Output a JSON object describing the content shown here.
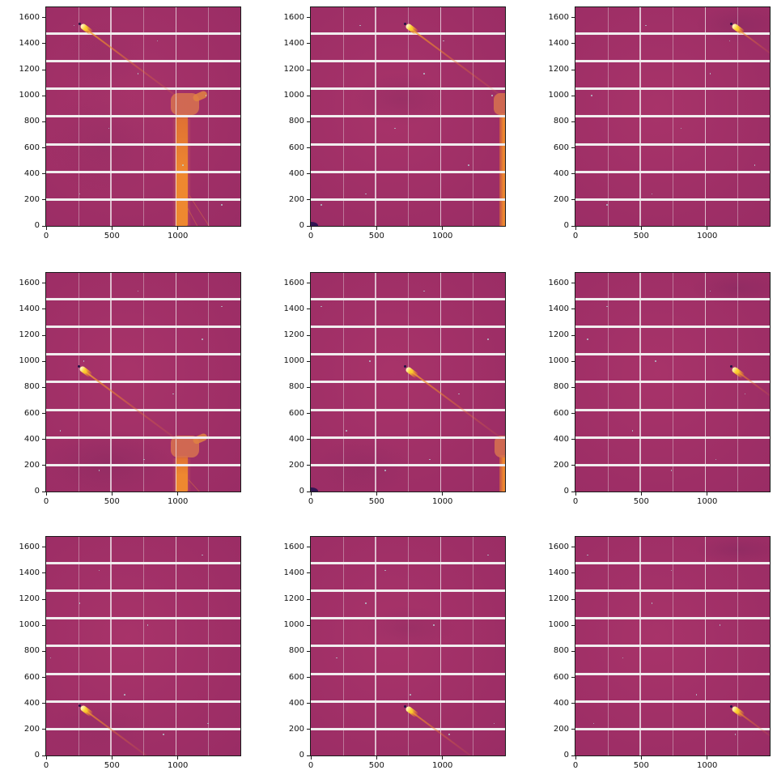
{
  "figure": {
    "background": "#ffffff",
    "description": "3x3 grid of detector diffraction images"
  },
  "chart_data": {
    "type": "heatmap",
    "layout": {
      "rows": 3,
      "cols": 3,
      "grid": false,
      "legend": "none"
    },
    "title": "",
    "xlabel": "",
    "ylabel": "",
    "xlim": [
      0,
      1475
    ],
    "ylim": [
      0,
      1679
    ],
    "xticks": [
      0,
      500,
      1000
    ],
    "yticks": [
      0,
      200,
      400,
      600,
      800,
      1000,
      1200,
      1400,
      1600
    ],
    "module_gap_rows_y": [
      204,
      416,
      628,
      840,
      1052,
      1264,
      1476
    ],
    "module_gap_cols_strong_x": [
      492,
      984
    ],
    "module_gap_cols_faint_x": [
      246,
      738,
      1230
    ],
    "colors": {
      "background": "#a4306a",
      "background_dark": "#6e235a",
      "gap_stripe": "#f1edee",
      "vline": "#f3eef0",
      "spot_core": "#fff6c4",
      "spot_bright": "#fdd02c",
      "streak_tail": "#ee7d2d",
      "shadow_core_orange": "#ee8230",
      "shadow_halo_salmon": "#d97252",
      "dark_dot": "#251244",
      "corner_blob": "#2a1452",
      "speckle": "#b9e1e1"
    },
    "speckles_pct": [
      {
        "x": 12,
        "y": 8
      },
      {
        "x": 55,
        "y": 15
      },
      {
        "x": 80,
        "y": 40
      },
      {
        "x": 30,
        "y": 55
      },
      {
        "x": 68,
        "y": 72
      },
      {
        "x": 15,
        "y": 85
      },
      {
        "x": 88,
        "y": 90
      },
      {
        "x": 45,
        "y": 30
      }
    ],
    "panels": [
      {
        "row": 0,
        "col": 0,
        "name": "frame-r0c0",
        "spot": {
          "x": 268,
          "y": 1537
        },
        "streak_end": {
          "x": 1005,
          "y": 984
        },
        "dark_dot": true,
        "corner_blob": false,
        "obstruction": {
          "kind": "center",
          "halo": {
            "x1": 960,
            "x2": 1102,
            "y1": 0,
            "y2": 820
          },
          "core": {
            "x1": 985,
            "x2": 1078,
            "y1": 0,
            "y2": 860
          },
          "head": {
            "x1": 948,
            "x2": 1162,
            "y1": 852,
            "y2": 1018
          },
          "arm": {
            "x1": 1120,
            "x2": 1232,
            "y1": 878,
            "y2": 1000
          },
          "rays": [
            {
              "x1": 1085,
              "y1": 235,
              "x2": 1235,
              "y2": 0
            },
            {
              "x1": 1072,
              "y1": 150,
              "x2": 1152,
              "y2": 0
            }
          ]
        },
        "shades": [
          {
            "l": 0,
            "t": 36,
            "w": 62,
            "h": 50,
            "a": 0.16
          },
          {
            "l": 8,
            "t": 6,
            "w": 42,
            "h": 36,
            "a": 0.1
          }
        ]
      },
      {
        "row": 0,
        "col": 1,
        "name": "frame-r0c1",
        "spot": {
          "x": 732,
          "y": 1537
        },
        "streak_end": {
          "x": 1445,
          "y": 1002
        },
        "dark_dot": true,
        "corner_blob": true,
        "obstruction": {
          "kind": "edge",
          "core": {
            "x1": 1430,
            "x2": 1475,
            "y1": 0,
            "y2": 865
          },
          "head": {
            "x1": 1390,
            "x2": 1475,
            "y1": 852,
            "y2": 1018
          }
        },
        "shades": [
          {
            "l": 22,
            "t": 30,
            "w": 48,
            "h": 24,
            "a": 0.22
          }
        ]
      },
      {
        "row": 0,
        "col": 2,
        "name": "frame-r0c2",
        "spot": {
          "x": 1196,
          "y": 1537
        },
        "streak_end": {
          "x": 1475,
          "y": 1328
        },
        "dark_dot": true,
        "corner_blob": false,
        "obstruction": {
          "kind": "none"
        },
        "shades": [
          {
            "l": 62,
            "t": 0,
            "w": 44,
            "h": 16,
            "a": 0.25
          }
        ]
      },
      {
        "row": 1,
        "col": 0,
        "name": "frame-r1c0",
        "spot": {
          "x": 266,
          "y": 947
        },
        "streak_end": {
          "x": 1002,
          "y": 395
        },
        "dark_dot": true,
        "corner_blob": false,
        "obstruction": {
          "kind": "center",
          "halo": {
            "x1": 960,
            "x2": 1102,
            "y1": 0,
            "y2": 255
          },
          "core": {
            "x1": 985,
            "x2": 1078,
            "y1": 0,
            "y2": 272
          },
          "head": {
            "x1": 948,
            "x2": 1162,
            "y1": 262,
            "y2": 428
          },
          "arm": {
            "x1": 1120,
            "x2": 1232,
            "y1": 290,
            "y2": 412
          },
          "rays": [
            {
              "x1": 1080,
              "y1": 95,
              "x2": 1165,
              "y2": 0
            }
          ]
        },
        "shades": [
          {
            "l": 0,
            "t": 72,
            "w": 64,
            "h": 30,
            "a": 0.25
          }
        ]
      },
      {
        "row": 1,
        "col": 1,
        "name": "frame-r1c1",
        "spot": {
          "x": 732,
          "y": 945
        },
        "streak_end": {
          "x": 1442,
          "y": 413
        },
        "dark_dot": true,
        "corner_blob": true,
        "obstruction": {
          "kind": "edge",
          "core": {
            "x1": 1432,
            "x2": 1475,
            "y1": 0,
            "y2": 280
          },
          "head": {
            "x1": 1395,
            "x2": 1475,
            "y1": 262,
            "y2": 428
          }
        },
        "shades": [
          {
            "l": 2,
            "t": 76,
            "w": 50,
            "h": 26,
            "a": 0.18
          }
        ]
      },
      {
        "row": 1,
        "col": 2,
        "name": "frame-r1c2",
        "spot": {
          "x": 1196,
          "y": 945
        },
        "streak_end": {
          "x": 1475,
          "y": 736
        },
        "dark_dot": true,
        "corner_blob": false,
        "obstruction": {
          "kind": "none"
        },
        "shades": [
          {
            "l": 60,
            "t": 0,
            "w": 46,
            "h": 14,
            "a": 0.25
          }
        ]
      },
      {
        "row": 2,
        "col": 0,
        "name": "frame-r2c0",
        "spot": {
          "x": 268,
          "y": 367
        },
        "streak_end": {
          "x": 757,
          "y": 0
        },
        "dark_dot": true,
        "corner_blob": false,
        "obstruction": {
          "kind": "none"
        },
        "shades": [
          {
            "l": 0,
            "t": 74,
            "w": 56,
            "h": 28,
            "a": 0.12
          }
        ]
      },
      {
        "row": 2,
        "col": 1,
        "name": "frame-r2c1",
        "spot": {
          "x": 732,
          "y": 361
        },
        "streak_end": {
          "x": 1213,
          "y": 0
        },
        "dark_dot": true,
        "corner_blob": false,
        "obstruction": {
          "kind": "none"
        },
        "shades": [
          {
            "l": 25,
            "t": 32,
            "w": 50,
            "h": 20,
            "a": 0.2
          }
        ]
      },
      {
        "row": 2,
        "col": 2,
        "name": "frame-r2c2",
        "spot": {
          "x": 1196,
          "y": 362
        },
        "streak_end": {
          "x": 1475,
          "y": 153
        },
        "dark_dot": true,
        "corner_blob": false,
        "obstruction": {
          "kind": "none"
        },
        "shades": [
          {
            "l": 62,
            "t": 0,
            "w": 42,
            "h": 12,
            "a": 0.25
          }
        ]
      }
    ]
  }
}
